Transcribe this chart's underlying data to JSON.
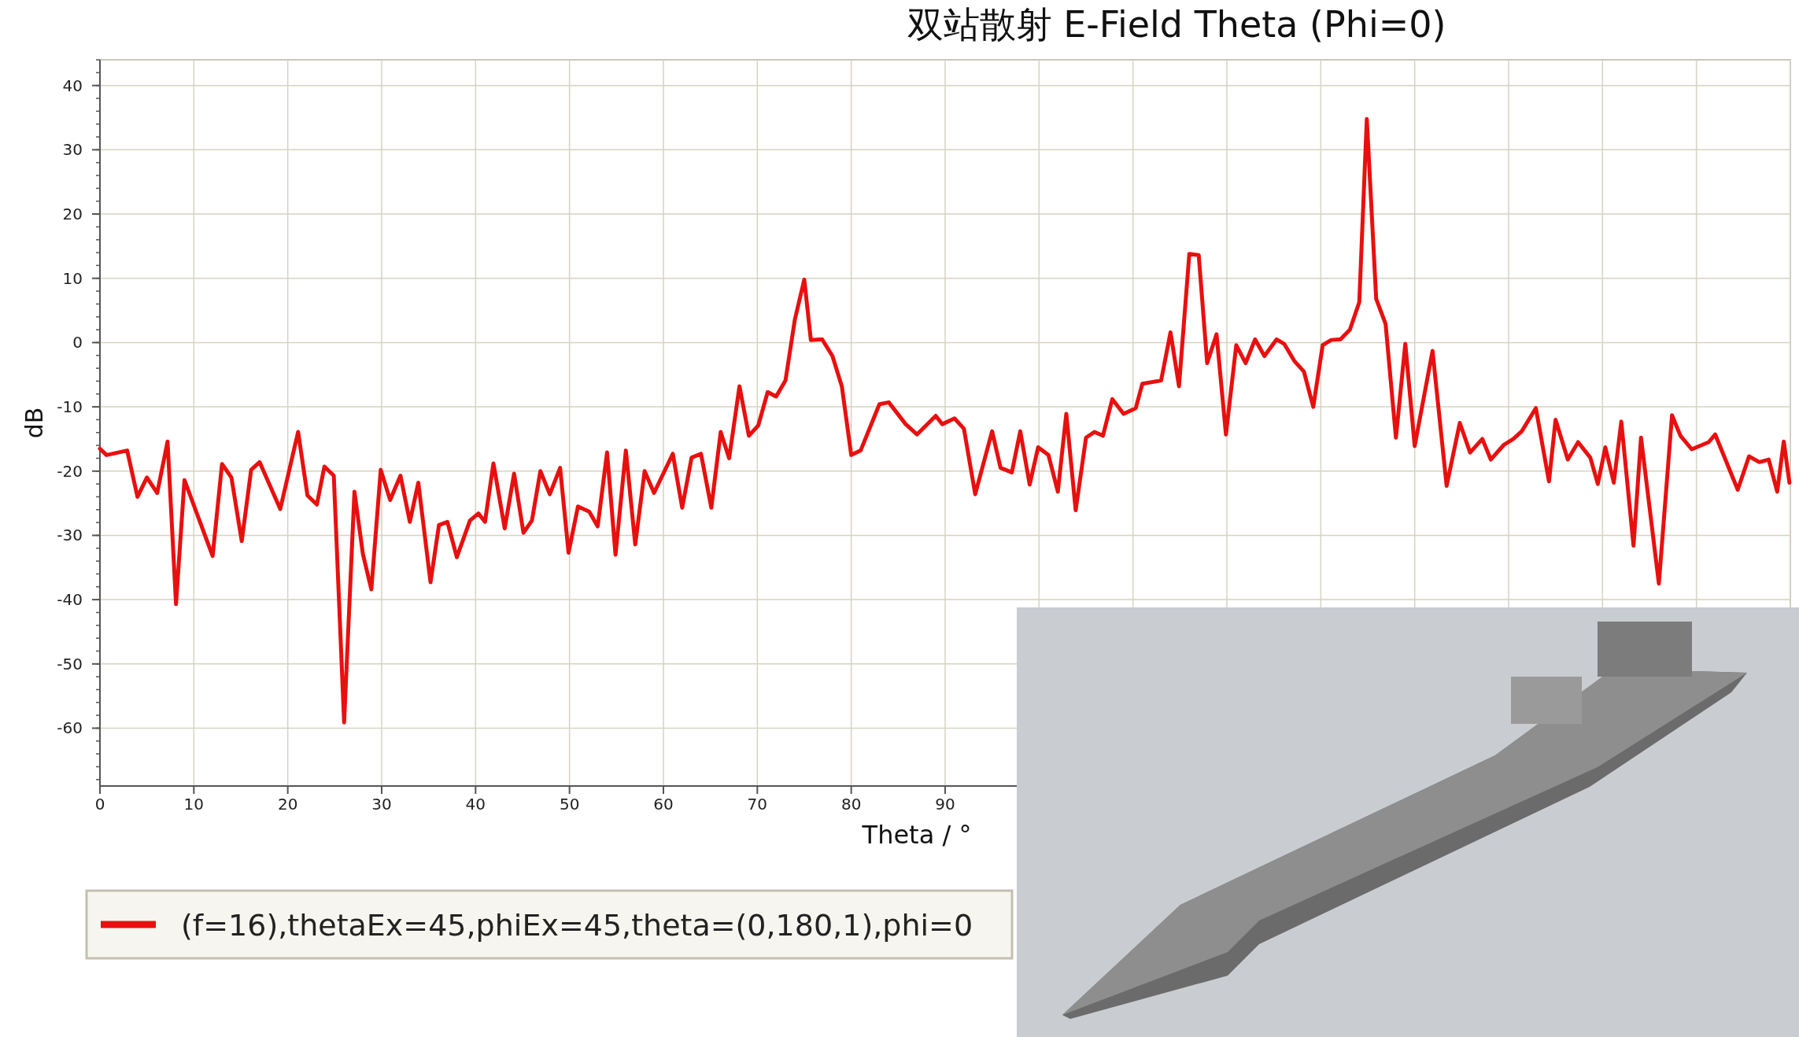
{
  "chart_data": {
    "type": "line",
    "title": "双站散射 E-Field Theta (Phi=0)",
    "xlabel": "Theta / °",
    "ylabel": "dB",
    "xlim": [
      0,
      180
    ],
    "ylim": [
      -69,
      44
    ],
    "xticks": [
      0,
      10,
      20,
      30,
      40,
      50,
      60,
      70,
      80,
      90,
      {
        "value": 100,
        "label": null
      },
      {
        "value": 110,
        "label": null
      },
      {
        "value": 120,
        "label": null
      },
      {
        "value": 130,
        "label": null
      },
      {
        "value": 140,
        "label": null
      },
      {
        "value": 150,
        "label": null
      },
      {
        "value": 160,
        "label": null
      },
      {
        "value": 170,
        "label": null
      },
      {
        "value": 180,
        "label": null
      }
    ],
    "yticks": [
      -60,
      -50,
      -40,
      -30,
      -20,
      -10,
      0,
      10,
      20,
      30,
      40
    ],
    "grid": true,
    "legend": "bottom",
    "series": [
      {
        "name": "(f=16),thetaEx=45,phiEx=45,theta=(0,180,1),phi=0",
        "color": "#e8100f",
        "x": [
          0,
          0.7,
          2.9,
          4,
          5,
          6.1,
          7.2,
          8.1,
          9,
          12,
          13,
          14,
          15.1,
          16.1,
          17,
          19.2,
          21.1,
          22.1,
          23.1,
          23.9,
          24.9,
          26,
          27.1,
          28,
          28.9,
          29.9,
          30.9,
          32,
          33,
          33.9,
          35.2,
          36.1,
          37,
          38,
          39.4,
          40.3,
          41,
          41.9,
          43.1,
          44.1,
          45.1,
          46,
          46.9,
          47.9,
          49,
          49.9,
          50.9,
          52.1,
          53,
          54,
          54.9,
          56,
          57,
          58,
          59,
          61,
          62,
          63,
          64,
          65.1,
          66.1,
          67,
          68.1,
          69.1,
          70.1,
          71.1,
          72,
          73,
          74,
          75,
          75.7,
          76.9,
          78,
          79,
          80,
          81,
          83,
          84,
          85.8,
          87,
          89,
          89.7,
          91,
          92,
          93.2,
          95,
          95.9,
          97.1,
          98,
          99,
          99.9,
          101,
          102,
          102.9,
          103.9,
          105,
          105.9,
          106.8,
          107.8,
          109,
          110.3,
          111,
          113,
          114,
          114.9,
          116,
          117,
          117.9,
          118.9,
          119.9,
          121,
          122,
          123,
          124,
          125.3,
          126.1,
          127.2,
          128.2,
          129.2,
          130.2,
          131.1,
          132.1,
          133.1,
          134.1,
          134.9,
          135.9,
          136.9,
          138,
          139,
          140,
          141.9,
          143.4,
          144.8,
          145.9,
          147.2,
          148.1,
          149.5,
          150.5,
          151.4,
          152.9,
          154.3,
          155,
          156.3,
          157.4,
          158.7,
          159.5,
          160.3,
          161.2,
          162,
          163.3,
          164.1,
          166,
          167.4,
          168.3,
          169.5,
          171.3,
          172,
          174.4,
          175.6,
          176.7,
          177.7,
          178.6,
          179.3,
          179.9
        ],
        "values": [
          -16.5,
          -17.5,
          -16.8,
          -24,
          -21,
          -23.4,
          -15.4,
          -40.7,
          -21.4,
          -33.2,
          -18.9,
          -21,
          -30.9,
          -19.8,
          -18.6,
          -25.9,
          -13.9,
          -23.8,
          -25.2,
          -19.3,
          -20.7,
          -59.1,
          -23.2,
          -32.9,
          -38.4,
          -19.8,
          -24.5,
          -20.7,
          -27.9,
          -21.8,
          -37.3,
          -28.4,
          -27.9,
          -33.4,
          -27.7,
          -26.6,
          -27.9,
          -18.8,
          -28.9,
          -20.4,
          -29.6,
          -27.7,
          -20,
          -23.6,
          -19.5,
          -32.7,
          -25.5,
          -26.3,
          -28.6,
          -17.1,
          -33,
          -16.8,
          -31.4,
          -20,
          -23.4,
          -17.3,
          -25.7,
          -17.9,
          -17.3,
          -25.7,
          -13.9,
          -18,
          -6.8,
          -14.5,
          -12.9,
          -7.7,
          -8.4,
          -5.9,
          3.6,
          9.8,
          0.4,
          0.5,
          -2.1,
          -6.8,
          -17.5,
          -16.8,
          -9.6,
          -9.3,
          -12.7,
          -14.3,
          -11.4,
          -12.7,
          -11.8,
          -13.4,
          -23.6,
          -13.8,
          -19.5,
          -20.2,
          -13.8,
          -22.1,
          -16.3,
          -17.5,
          -23.2,
          -11.1,
          -26.1,
          -14.8,
          -13.9,
          -14.5,
          -8.8,
          -11.1,
          -10.2,
          -6.4,
          -5.9,
          1.6,
          -6.8,
          13.8,
          13.6,
          -3.2,
          1.3,
          -14.3,
          -0.4,
          -3.2,
          0.5,
          -2.1,
          0.5,
          -0.2,
          -2.9,
          -4.5,
          -10,
          -0.4,
          0.4,
          0.5,
          2,
          6.3,
          34.8,
          6.8,
          2.9,
          -14.8,
          -0.2,
          -16.1,
          -1.3,
          -22.3,
          -12.5,
          -17.1,
          -15,
          -18.2,
          -15.9,
          -15,
          -13.8,
          -10.2,
          -21.6,
          -12,
          -18.2,
          -15.5,
          -17.9,
          -22,
          -16.3,
          -21.8,
          -12.3,
          -31.6,
          -14.8,
          -37.5,
          -11.3,
          -14.5,
          -16.6,
          -15.5,
          -14.3,
          -22.9,
          -17.7,
          -18.6,
          -18.2,
          -23.2,
          -15.4,
          -21.8
        ]
      }
    ]
  }
}
